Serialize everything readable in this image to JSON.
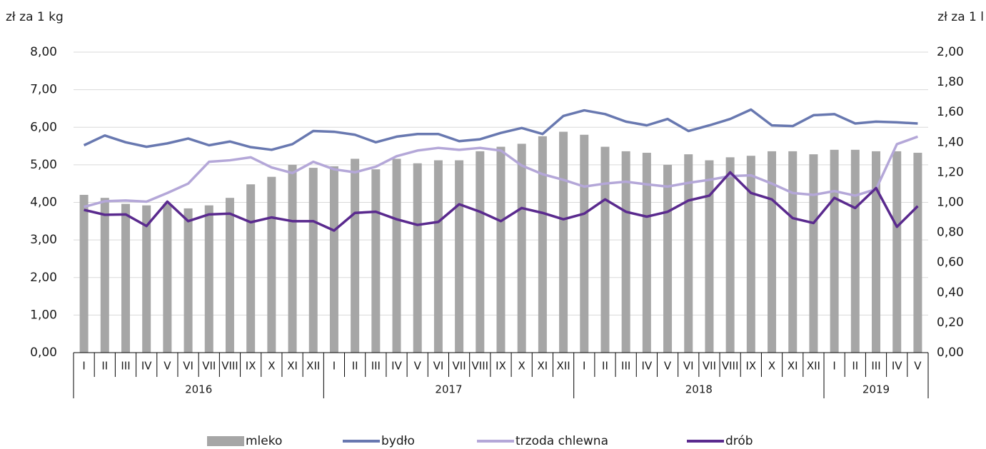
{
  "chart_data": {
    "type": "combo",
    "y_label": "zł za 1 kg",
    "y2_label": "zł za 1 l",
    "categories": [
      "I",
      "II",
      "III",
      "IV",
      "V",
      "VI",
      "VII",
      "VIII",
      "IX",
      "X",
      "XI",
      "XII",
      "I",
      "II",
      "III",
      "IV",
      "V",
      "VI",
      "VII",
      "VIII",
      "IX",
      "X",
      "XI",
      "XII",
      "I",
      "II",
      "III",
      "IV",
      "V",
      "VI",
      "VII",
      "VIII",
      "IX",
      "X",
      "XI",
      "XII",
      "I",
      "II",
      "III",
      "IV",
      "V"
    ],
    "years": [
      "2016",
      "2017",
      "2018",
      "2019"
    ],
    "ylim": [
      0,
      8
    ],
    "yticks": [
      {
        "value": 0,
        "label": "0,00"
      },
      {
        "value": 1,
        "label": "1,00"
      },
      {
        "value": 2,
        "label": "2,00"
      },
      {
        "value": 3,
        "label": "3,00"
      },
      {
        "value": 4,
        "label": "4,00"
      },
      {
        "value": 5,
        "label": "5,00"
      },
      {
        "value": 6,
        "label": "6,00"
      },
      {
        "value": 7,
        "label": "7,00"
      },
      {
        "value": 8,
        "label": "8,00"
      }
    ],
    "y2lim": [
      0,
      2
    ],
    "y2ticks": [
      {
        "value": 0,
        "label": "0,00"
      },
      {
        "value": 0.2,
        "label": "0,20"
      },
      {
        "value": 0.4,
        "label": "0,40"
      },
      {
        "value": 0.6,
        "label": "0,60"
      },
      {
        "value": 0.8,
        "label": "0,80"
      },
      {
        "value": 1,
        "label": "1,00"
      },
      {
        "value": 1.2,
        "label": "1,20"
      },
      {
        "value": 1.4,
        "label": "1,40"
      },
      {
        "value": 1.6,
        "label": "1,60"
      },
      {
        "value": 1.8,
        "label": "1,80"
      },
      {
        "value": 2,
        "label": "2,00"
      }
    ],
    "grid": true,
    "series": [
      {
        "name": "mleko",
        "type": "bar",
        "axis": "y2",
        "color": "#a6a6a6",
        "values": [
          1.05,
          1.03,
          0.99,
          0.98,
          0.99,
          0.96,
          0.98,
          1.03,
          1.12,
          1.17,
          1.25,
          1.23,
          1.24,
          1.29,
          1.22,
          1.29,
          1.26,
          1.28,
          1.28,
          1.34,
          1.37,
          1.39,
          1.44,
          1.47,
          1.45,
          1.37,
          1.34,
          1.33,
          1.25,
          1.32,
          1.28,
          1.3,
          1.31,
          1.34,
          1.34,
          1.32,
          1.35,
          1.35,
          1.34,
          1.34,
          1.33
        ]
      },
      {
        "name": "bydło",
        "type": "line",
        "color": "#6878b0",
        "values": [
          5.52,
          5.78,
          5.6,
          5.48,
          5.57,
          5.7,
          5.52,
          5.62,
          5.47,
          5.4,
          5.55,
          5.9,
          5.88,
          5.8,
          5.6,
          5.75,
          5.82,
          5.82,
          5.63,
          5.68,
          5.85,
          5.98,
          5.82,
          6.3,
          6.45,
          6.35,
          6.15,
          6.05,
          6.22,
          5.9,
          6.05,
          6.22,
          6.47,
          6.05,
          6.03,
          6.32,
          6.35,
          6.1,
          6.15,
          6.13,
          6.1
        ]
      },
      {
        "name": "trzoda chlewna",
        "type": "line",
        "color": "#b4a7d8",
        "values": [
          3.88,
          4.03,
          4.05,
          4.02,
          4.25,
          4.5,
          5.08,
          5.12,
          5.2,
          4.93,
          4.78,
          5.08,
          4.88,
          4.8,
          4.95,
          5.23,
          5.38,
          5.45,
          5.4,
          5.45,
          5.38,
          4.98,
          4.75,
          4.6,
          4.42,
          4.5,
          4.55,
          4.48,
          4.42,
          4.52,
          4.6,
          4.7,
          4.72,
          4.5,
          4.25,
          4.2,
          4.3,
          4.18,
          4.35,
          5.55,
          5.75
        ]
      },
      {
        "name": "drób",
        "type": "line",
        "color": "#5a2a8e",
        "values": [
          3.8,
          3.67,
          3.68,
          3.37,
          4.02,
          3.5,
          3.68,
          3.7,
          3.47,
          3.6,
          3.5,
          3.5,
          3.25,
          3.72,
          3.75,
          3.55,
          3.4,
          3.48,
          3.95,
          3.75,
          3.5,
          3.85,
          3.72,
          3.55,
          3.7,
          4.08,
          3.75,
          3.62,
          3.75,
          4.05,
          4.18,
          4.8,
          4.25,
          4.08,
          3.58,
          3.45,
          4.12,
          3.85,
          4.38,
          3.35,
          3.9
        ]
      }
    ]
  }
}
